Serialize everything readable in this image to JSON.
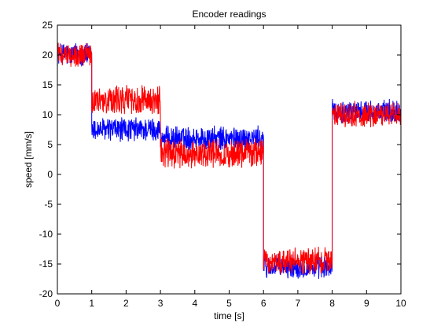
{
  "chart_data": {
    "type": "line",
    "title": "Encoder readings",
    "xlabel": "time [s]",
    "ylabel": "speed [mm/s]",
    "xlim": [
      0,
      10
    ],
    "ylim": [
      -20,
      25
    ],
    "xticks": [
      0,
      1,
      2,
      3,
      4,
      5,
      6,
      7,
      8,
      9,
      10
    ],
    "yticks": [
      -20,
      -15,
      -10,
      -5,
      0,
      5,
      10,
      15,
      20,
      25
    ],
    "grid": false,
    "legend": "none",
    "noise_sample_step": 0.008,
    "series": [
      {
        "color": "#0000ff",
        "segments": [
          {
            "x0": 0,
            "x1": 1,
            "mean": 20.0,
            "noise": 1.8
          },
          {
            "x0": 1,
            "x1": 3,
            "mean": 7.5,
            "noise": 1.8
          },
          {
            "x0": 3,
            "x1": 6,
            "mean": 6.0,
            "noise": 1.8
          },
          {
            "x0": 6,
            "x1": 8,
            "mean": -15.5,
            "noise": 1.8
          },
          {
            "x0": 8,
            "x1": 10,
            "mean": 10.5,
            "noise": 1.8
          }
        ]
      },
      {
        "color": "#ff0000",
        "segments": [
          {
            "x0": 0,
            "x1": 1,
            "mean": 20.0,
            "noise": 1.8
          },
          {
            "x0": 1,
            "x1": 3,
            "mean": 12.5,
            "noise": 2.2
          },
          {
            "x0": 3,
            "x1": 6,
            "mean": 3.5,
            "noise": 2.2
          },
          {
            "x0": 6,
            "x1": 8,
            "mean": -14.5,
            "noise": 2.0
          },
          {
            "x0": 8,
            "x1": 10,
            "mean": 10.0,
            "noise": 2.0
          }
        ]
      }
    ]
  }
}
